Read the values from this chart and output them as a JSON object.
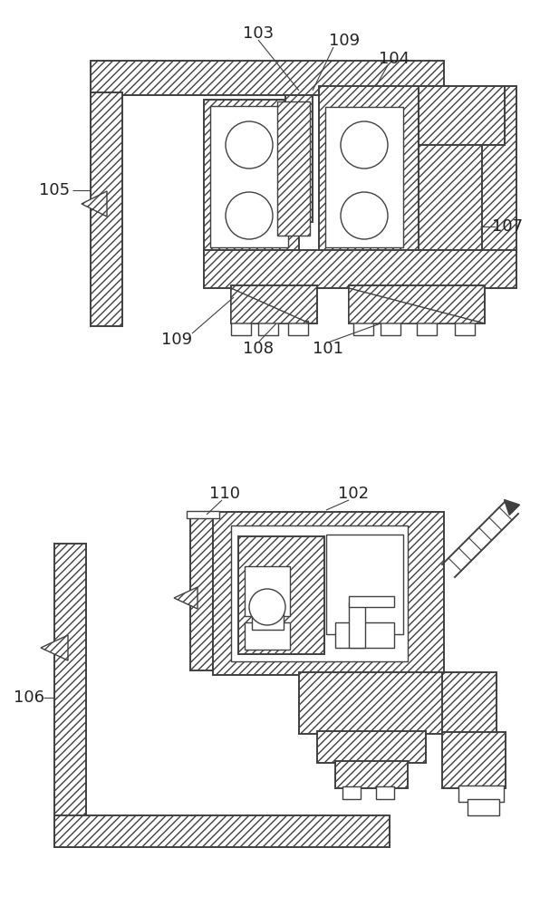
{
  "bg_color": "#ffffff",
  "lc": "#404040",
  "lw_thin": 0.8,
  "lw_med": 1.0,
  "lw_thick": 1.4,
  "hatch": "////",
  "fig_w": 5.96,
  "fig_h": 10.0,
  "dpi": 100
}
